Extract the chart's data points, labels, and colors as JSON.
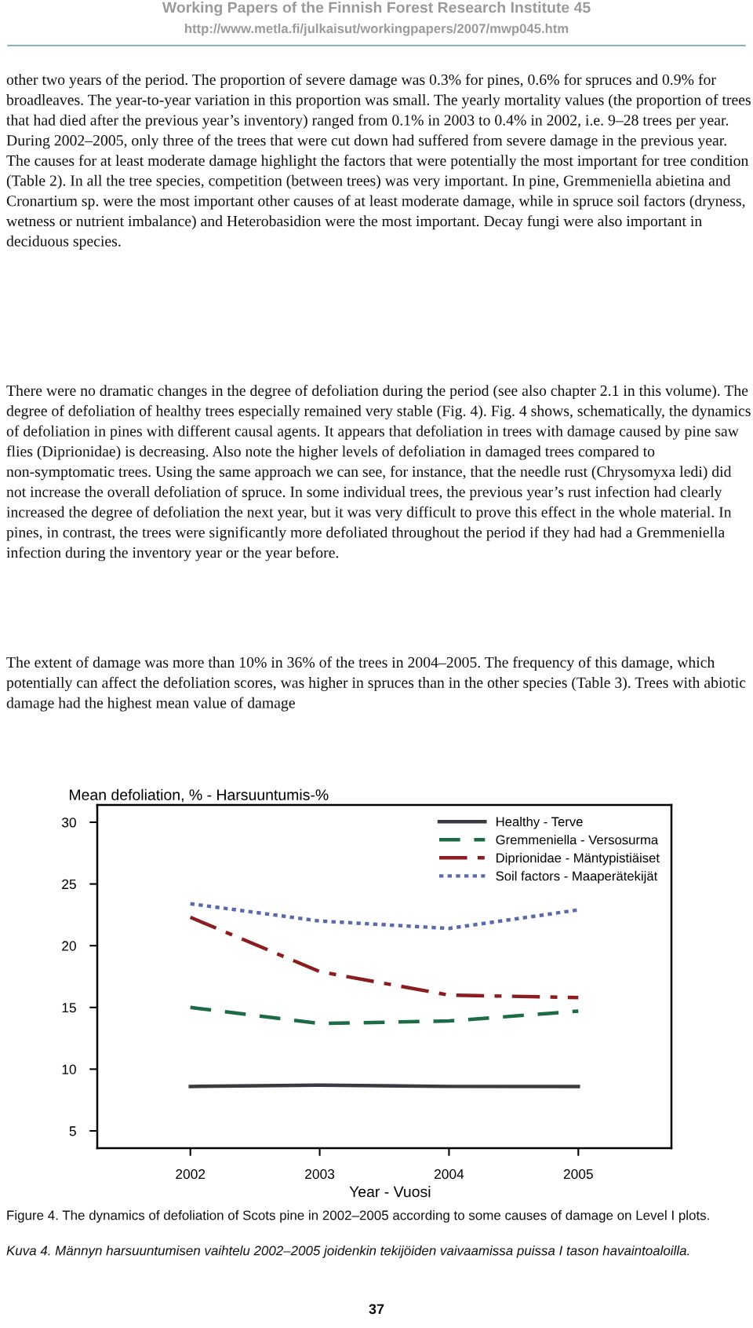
{
  "chart_data": {
    "type": "line",
    "ylabel": "Mean defoliation, % - Harsuuntumis-%",
    "xlabel": "Year - Vuosi",
    "x": [
      2002,
      2003,
      2004,
      2005
    ],
    "series": [
      {
        "name": "Healthy - Terve",
        "color": "#3a3a42",
        "line_style": "solid",
        "values": [
          8.6,
          8.7,
          8.6,
          8.6
        ]
      },
      {
        "name": "Gremmeniella - Versosurma",
        "color": "#1d6b45",
        "line_style": "dashed",
        "values": [
          15.0,
          13.7,
          13.9,
          14.7
        ]
      },
      {
        "name": "Diprionidae - Mäntypistiäiset",
        "color": "#8b1c1f",
        "line_style": "dashdot",
        "values": [
          22.3,
          17.9,
          16.0,
          15.8
        ]
      },
      {
        "name": "Soil factors - Maaperätekijät",
        "color": "#5a6aa8",
        "line_style": "dotted",
        "values": [
          23.4,
          22.0,
          21.4,
          22.9
        ]
      }
    ],
    "xlim": [
      2001.28,
      2005.72
    ],
    "xticks": [
      2002,
      2003,
      2004,
      2005
    ],
    "ylim": [
      3.6,
      31.4
    ],
    "yticks": [
      5,
      10,
      15,
      20,
      25,
      30
    ],
    "grid": false,
    "legend": "top right",
    "marker": "none",
    "annotations": [
      "Working Papers of the Finnish Forest Research Institute 45",
      "http://www.metla.fi/julkaisut/workingpapers/2007/mwp045.htm",
      "other two years of the period. The proportion of severe damage was 0.3% for pines, 0.6% for spruces and 0.9% for broadleaves. The year-to-year variation in this proportion was small. The yearly mortality values (the proportion of trees that had died after the previous year’s inventory) ranged from 0.1% in 2003 to 0.4% in 2002, i.e. 9–28 trees per year. During 2002–2005, only three of the trees that were cut down had suffered from severe damage in the previous year. The causes for at least moderate damage highlight the factors that were potentially the most important for tree condition (Table 2). In all the tree species, competition (between trees) was very important. In pine, Gremmeniella abietina and Cronartium sp. were the most important other causes of at least moderate damage, while in spruce soil factors (dryness, wetness or nutrient imbalance) and Heterobasidion were the most important. Decay fungi were also important in deciduous species.",
      "There were no dramatic changes in the degree of defoliation during the period (see also chapter 2.1 in this volume). The degree of defoliation of healthy trees especially remained very stable (Fig. 4). Fig. 4 shows, schematically, the dynamics of defoliation in pines with different causal agents. It appears that defoliation in trees with damage caused by pine saw flies (Diprionidae) is decreasing. Also note the higher levels of defoliation in damaged trees compared to non-symptomatic trees. Using the same approach we can see, for instance, that the needle rust (Chrysomyxa ledi) did not increase the overall defoliation of spruce. In some individual trees, the previous year’s rust infection had clearly increased the degree of defoliation the next year, but it was very difficult to prove this effect in the whole material. In pines, in contrast, the trees were significantly more defoliated throughout the period if they had had a Gremmeniella infection during the inventory year or the year before.",
      "The extent of damage was more than 10% in 36% of the trees in 2004–2005. The frequency of this damage, which potentially can affect the defoliation scores, was higher in spruces than in the other species (Table 3). Trees with abiotic damage had the highest mean value of damage",
      "Figure 4. The dynamics of defoliation of Scots pine in 2002–2005 according to some causes of damage on Level I plots.",
      "Kuva 4. Männyn harsuuntumisen vaihtelu 2002–2005 joidenkin tekijöiden vaivaamissa puissa I tason havaintoaloilla.",
      "37"
    ]
  }
}
